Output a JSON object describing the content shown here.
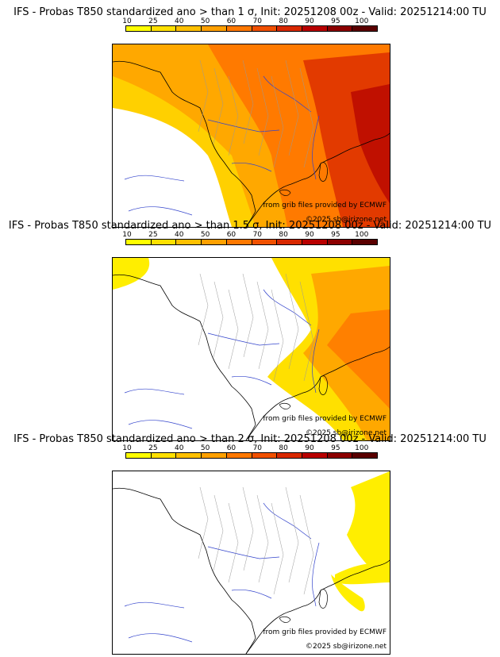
{
  "scale": {
    "ticks": [
      "10",
      "25",
      "40",
      "50",
      "60",
      "70",
      "80",
      "90",
      "95",
      "100"
    ],
    "colors": [
      "#ffff00",
      "#ffe000",
      "#ffc000",
      "#ffa000",
      "#ff7800",
      "#f05000",
      "#d82800",
      "#b80000",
      "#8c0000",
      "#5a0000"
    ]
  },
  "panels": [
    {
      "title": "IFS - Probas T850  standardized ano > than 1 σ, Init: 20251208 00z - Valid: 20251214:00 TU",
      "source_note": "from grib files provided by ECMWF",
      "copyright": "©2025 sb@irizone.net",
      "field": "high"
    },
    {
      "title": "IFS - Probas T850  standardized ano > than 1.5 σ, Init: 20251208 00z - Valid: 20251214:00 TU",
      "source_note": "from grib files provided by ECMWF",
      "copyright": "©2025 sb@irizone.net",
      "field": "mid"
    },
    {
      "title": "IFS - Probas T850  standardized ano > than 2 σ, Init: 20251208 00z - Valid: 20251214:00 TU",
      "source_note": "from grib files provided by ECMWF",
      "copyright": "©2025 sb@irizone.net",
      "field": "low"
    }
  ]
}
